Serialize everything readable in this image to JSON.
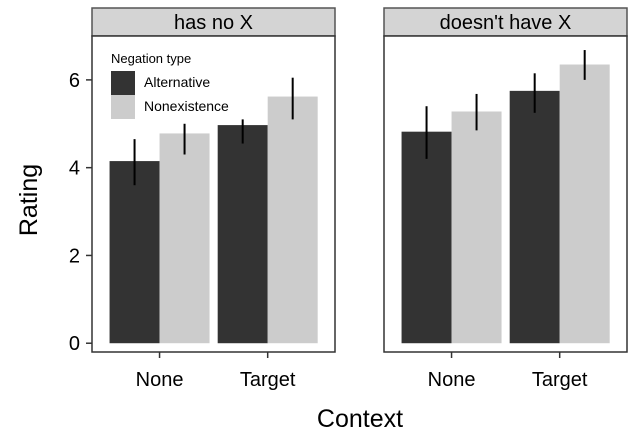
{
  "chart_data": {
    "type": "bar",
    "xlabel": "Context",
    "ylabel": "Rating",
    "categories": [
      "None",
      "Target"
    ],
    "yticks": [
      0,
      2,
      4,
      6
    ],
    "ylim": [
      -0.2,
      7.0
    ],
    "legend": {
      "title": "Negation type",
      "placement": "top-left",
      "entries": [
        "Alternative",
        "Nonexistence"
      ]
    },
    "series_colors": {
      "Alternative": "#333333",
      "Nonexistence": "#cccccc"
    },
    "panels": [
      {
        "strip": "has no X",
        "series": [
          {
            "name": "Alternative",
            "values": [
              4.15,
              4.97
            ],
            "err_low": [
              3.6,
              4.55
            ],
            "err_high": [
              4.65,
              5.1
            ]
          },
          {
            "name": "Nonexistence",
            "values": [
              4.78,
              5.62
            ],
            "err_low": [
              4.3,
              5.1
            ],
            "err_high": [
              5.0,
              6.05
            ]
          }
        ]
      },
      {
        "strip": "doesn't have X",
        "series": [
          {
            "name": "Alternative",
            "values": [
              4.82,
              5.75
            ],
            "err_low": [
              4.2,
              5.25
            ],
            "err_high": [
              5.4,
              6.15
            ]
          },
          {
            "name": "Nonexistence",
            "values": [
              5.28,
              6.35
            ],
            "err_low": [
              4.85,
              6.0
            ],
            "err_high": [
              5.68,
              6.68
            ]
          }
        ]
      }
    ]
  }
}
